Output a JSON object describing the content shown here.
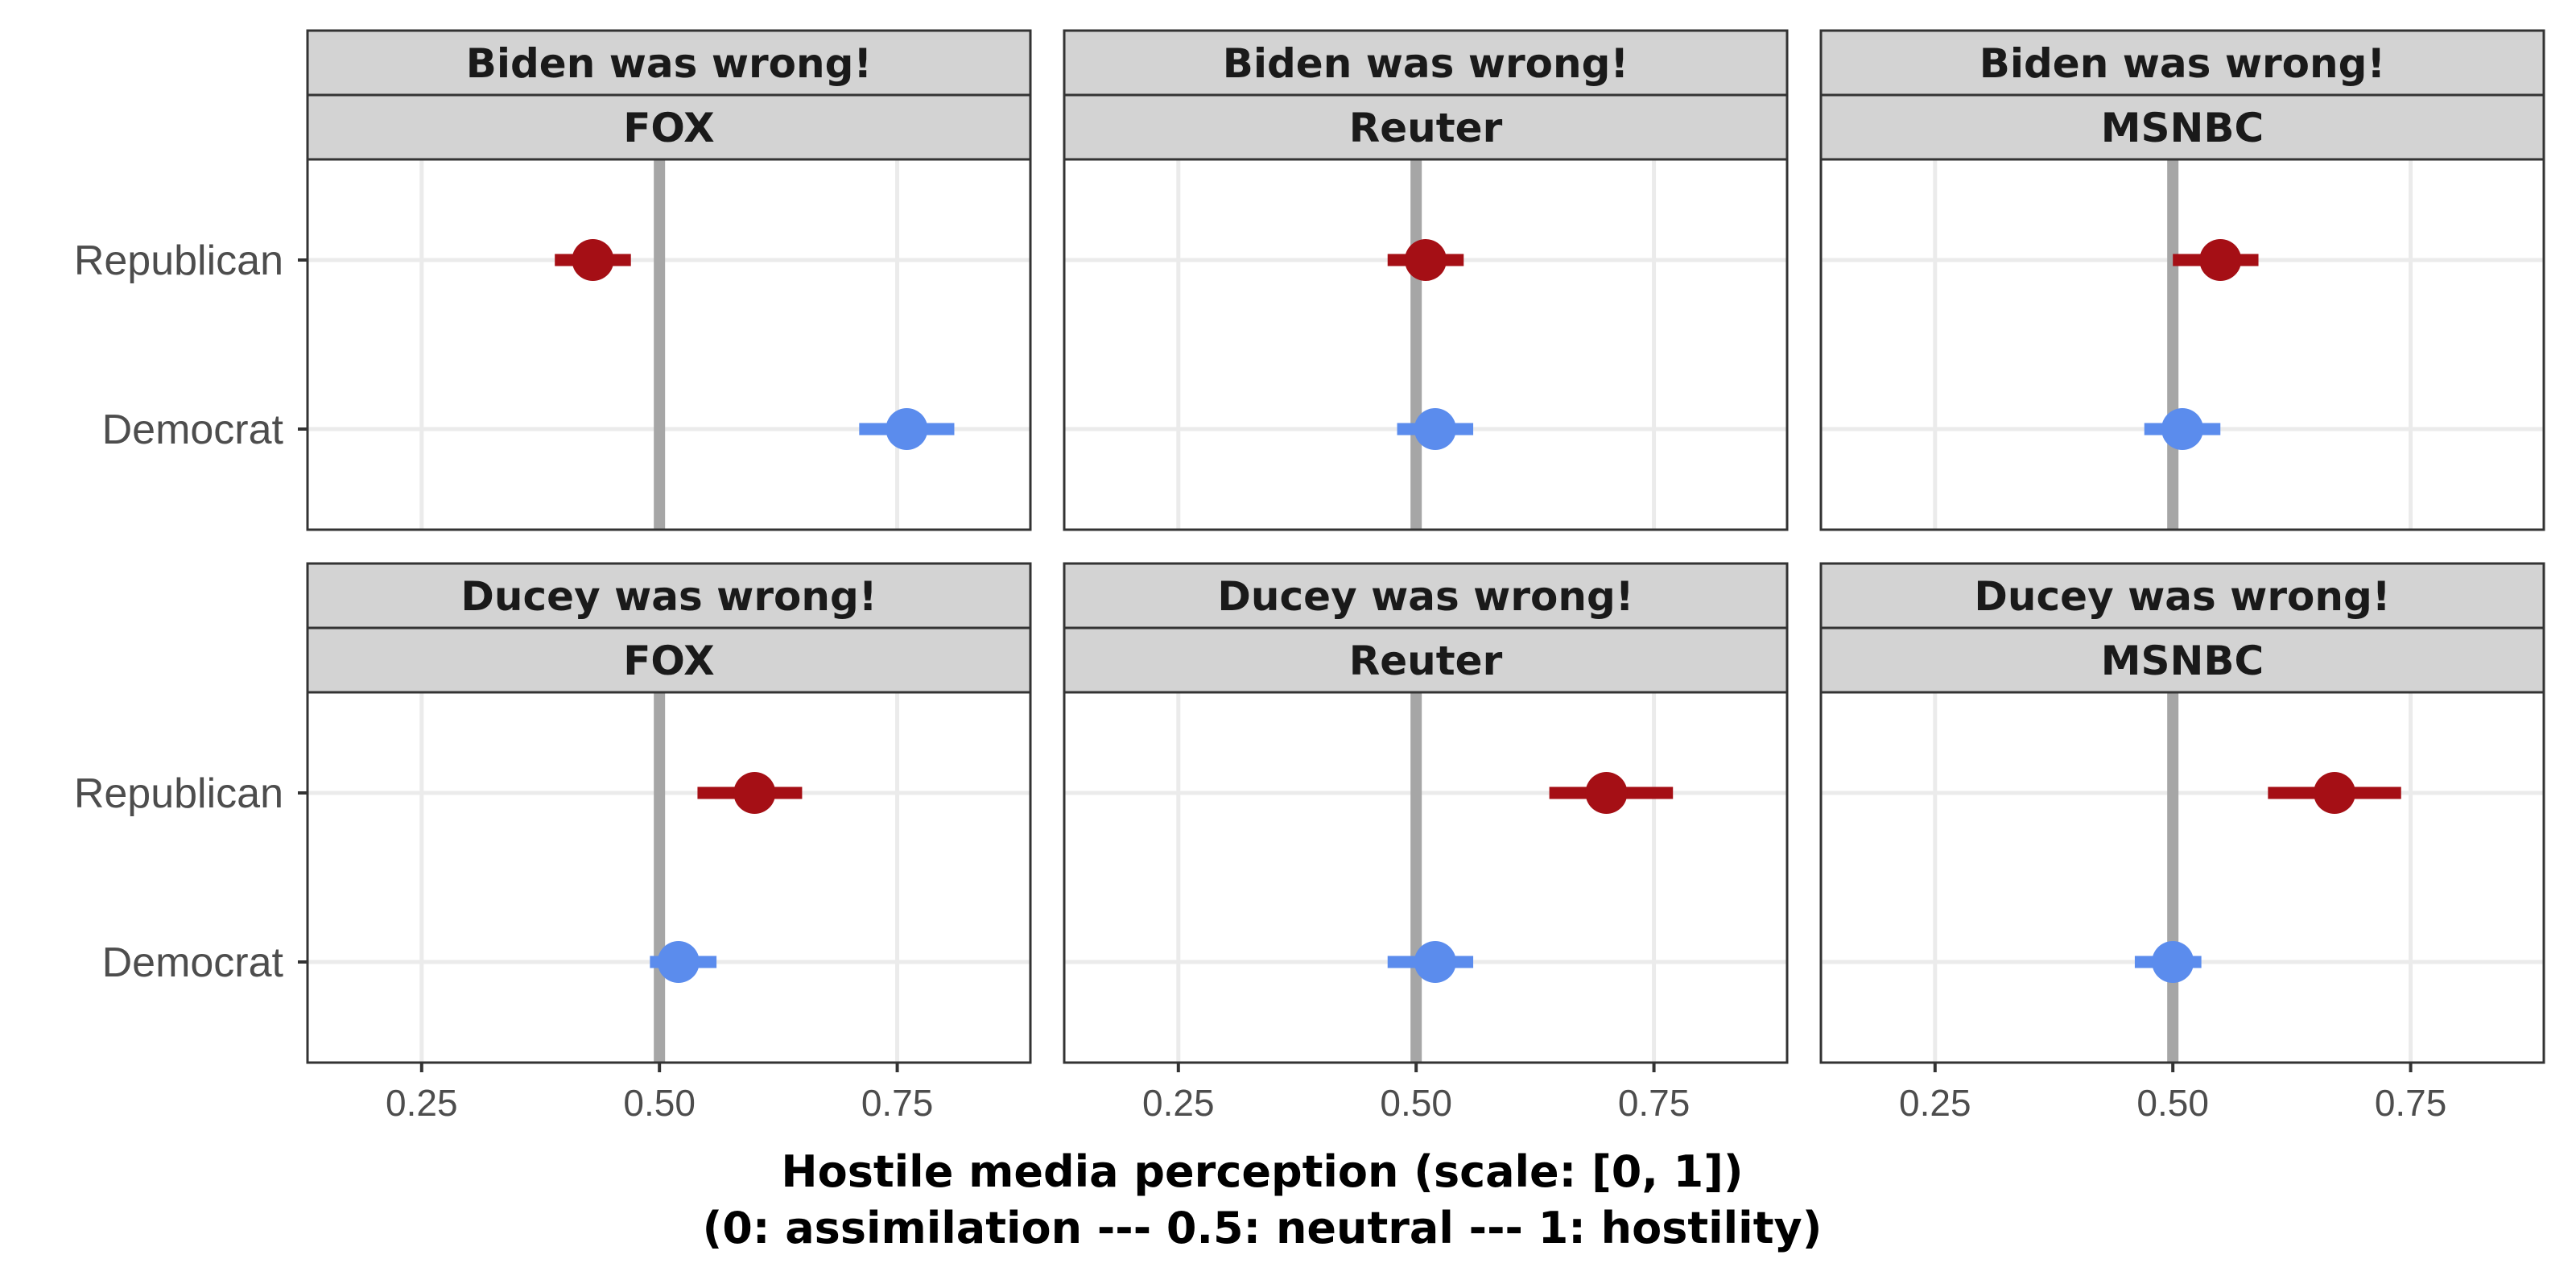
{
  "chart_data": {
    "type": "scatter",
    "subtype": "dot-and-whisker, faceted 2x3",
    "title": "",
    "xlabel_lines": [
      "Hostile media perception (scale: [0, 1])",
      "(0: assimilation --- 0.5: neutral --- 1: hostility)"
    ],
    "ylabel": "",
    "xlim": [
      0.13,
      0.89
    ],
    "xticks": [
      0.25,
      0.5,
      0.75
    ],
    "xtick_labels": [
      "0.25",
      "0.50",
      "0.75"
    ],
    "reference_line_x": 0.5,
    "grid": true,
    "legend": "none",
    "categories": [
      "Republican",
      "Democrat"
    ],
    "series_colors": {
      "Republican": "#a50f15",
      "Democrat": "#5b8ced"
    },
    "facet_rows": [
      "Biden was wrong!",
      "Ducey was wrong!"
    ],
    "facet_cols": [
      "FOX",
      "Reuter",
      "MSNBC"
    ],
    "panels": [
      {
        "row_label": "Biden was wrong!",
        "col_label": "FOX",
        "points": [
          {
            "group": "Republican",
            "value": 0.43,
            "ci": [
              0.39,
              0.47
            ]
          },
          {
            "group": "Democrat",
            "value": 0.76,
            "ci": [
              0.71,
              0.81
            ]
          }
        ]
      },
      {
        "row_label": "Biden was wrong!",
        "col_label": "Reuter",
        "points": [
          {
            "group": "Republican",
            "value": 0.51,
            "ci": [
              0.47,
              0.55
            ]
          },
          {
            "group": "Democrat",
            "value": 0.52,
            "ci": [
              0.48,
              0.56
            ]
          }
        ]
      },
      {
        "row_label": "Biden was wrong!",
        "col_label": "MSNBC",
        "points": [
          {
            "group": "Republican",
            "value": 0.55,
            "ci": [
              0.5,
              0.59
            ]
          },
          {
            "group": "Democrat",
            "value": 0.51,
            "ci": [
              0.47,
              0.55
            ]
          }
        ]
      },
      {
        "row_label": "Ducey was wrong!",
        "col_label": "FOX",
        "points": [
          {
            "group": "Republican",
            "value": 0.6,
            "ci": [
              0.54,
              0.65
            ]
          },
          {
            "group": "Democrat",
            "value": 0.52,
            "ci": [
              0.49,
              0.56
            ]
          }
        ]
      },
      {
        "row_label": "Ducey was wrong!",
        "col_label": "Reuter",
        "points": [
          {
            "group": "Republican",
            "value": 0.7,
            "ci": [
              0.64,
              0.77
            ]
          },
          {
            "group": "Democrat",
            "value": 0.52,
            "ci": [
              0.47,
              0.56
            ]
          }
        ]
      },
      {
        "row_label": "Ducey was wrong!",
        "col_label": "MSNBC",
        "points": [
          {
            "group": "Republican",
            "value": 0.67,
            "ci": [
              0.6,
              0.74
            ]
          },
          {
            "group": "Democrat",
            "value": 0.5,
            "ci": [
              0.46,
              0.53
            ]
          }
        ]
      }
    ]
  }
}
